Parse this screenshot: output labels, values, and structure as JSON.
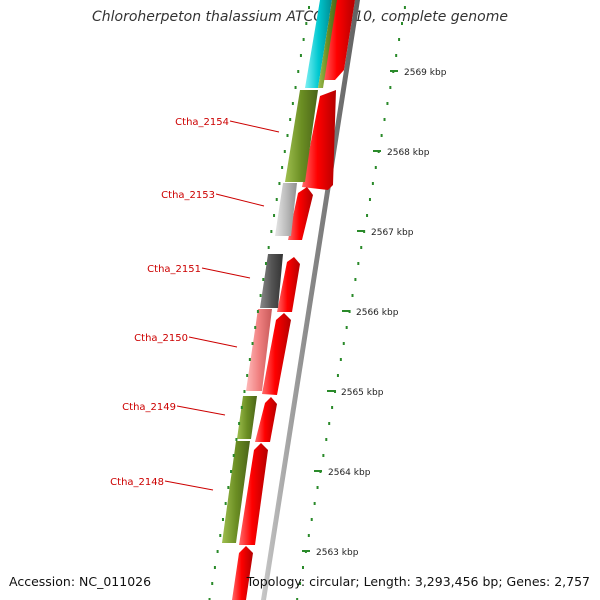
{
  "header": {
    "title": "Chloroherpeton thalassium ATCC 35110, complete genome"
  },
  "footer": {
    "accession": "Accession: NC_011026",
    "topology": "Topology: circular; Length: 3,293,456 bp; Genes: 2,757"
  },
  "colors": {
    "forward_gene": "#ff0000",
    "cog_olive": "#6b8e23",
    "cog_cyan": "#00c8d0",
    "cog_light_gray": "#bdbdbd",
    "cog_dark_gray": "#555555",
    "cog_pink": "#f08080",
    "backbone": "#888888",
    "ticks": "#2a8a2a",
    "labels": "#cc0000"
  },
  "chart_data": {
    "type": "genome-map",
    "position_scale": [
      {
        "label": "2569 kbp",
        "kbp": 2569
      },
      {
        "label": "2568 kbp",
        "kbp": 2568
      },
      {
        "label": "2567 kbp",
        "kbp": 2567
      },
      {
        "label": "2566 kbp",
        "kbp": 2566
      },
      {
        "label": "2565 kbp",
        "kbp": 2565
      },
      {
        "label": "2564 kbp",
        "kbp": 2564
      },
      {
        "label": "2563 kbp",
        "kbp": 2563
      }
    ],
    "labeled_genes": [
      {
        "label": "Ctha_2154",
        "cog_color": "#6b8e23"
      },
      {
        "label": "Ctha_2153",
        "cog_color": "#bdbdbd"
      },
      {
        "label": "Ctha_2151",
        "cog_color": "#555555"
      },
      {
        "label": "Ctha_2150",
        "cog_color": "#f08080"
      },
      {
        "label": "Ctha_2149",
        "cog_color": "#6b8e23"
      },
      {
        "label": "Ctha_2148",
        "cog_color": "#6b8e23"
      }
    ]
  }
}
